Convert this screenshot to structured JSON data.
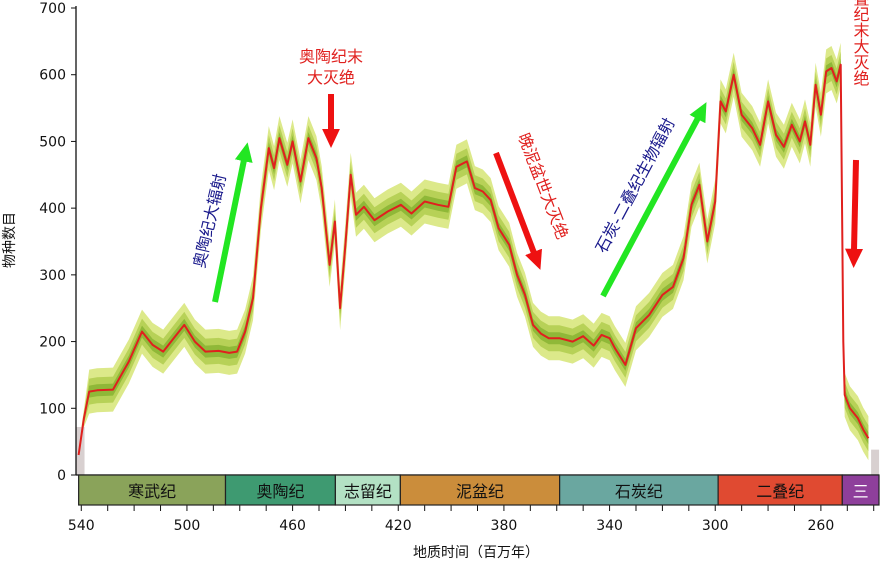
{
  "chart_data": {
    "type": "area",
    "xlabel": "地质时间（百万年）",
    "ylabel": "物种数目",
    "xlim": [
      542,
      238
    ],
    "ylim": [
      0,
      700
    ],
    "xticks": [
      540,
      500,
      460,
      420,
      380,
      340,
      300,
      260
    ],
    "yticks": [
      0,
      100,
      200,
      300,
      400,
      500,
      600,
      700
    ],
    "series": [
      {
        "x": [
          541,
          539,
          537,
          534,
          528,
          522,
          517,
          513,
          509,
          505,
          501,
          497,
          493,
          488,
          484,
          481,
          478,
          475,
          472,
          469,
          467,
          465,
          462,
          460,
          457,
          454,
          451,
          449,
          446,
          444,
          442,
          440,
          438,
          436,
          433,
          429,
          424,
          419,
          415,
          410,
          405,
          401,
          398,
          394,
          391,
          388,
          385,
          382,
          378,
          375,
          372,
          369,
          366,
          363,
          359,
          354,
          350,
          346,
          343,
          340,
          338,
          334,
          330,
          325,
          320,
          316,
          312,
          309,
          306,
          303,
          300,
          298,
          296,
          293,
          290,
          286,
          283,
          280,
          277,
          274,
          271,
          268,
          266,
          264,
          262,
          260,
          258,
          256,
          254,
          252.5,
          251.5,
          251,
          249,
          246,
          244,
          242
        ],
        "y": [
          30,
          85,
          125,
          127,
          128,
          170,
          215,
          195,
          185,
          205,
          225,
          200,
          185,
          186,
          183,
          185,
          215,
          265,
          400,
          490,
          460,
          505,
          465,
          500,
          440,
          505,
          475,
          430,
          315,
          380,
          250,
          345,
          450,
          390,
          402,
          382,
          395,
          405,
          392,
          410,
          405,
          402,
          462,
          470,
          430,
          425,
          412,
          370,
          345,
          300,
          270,
          225,
          212,
          205,
          205,
          200,
          208,
          194,
          210,
          205,
          190,
          165,
          220,
          240,
          270,
          282,
          325,
          405,
          435,
          350,
          410,
          560,
          545,
          600,
          540,
          520,
          495,
          560,
          510,
          492,
          525,
          500,
          530,
          495,
          585,
          540,
          605,
          610,
          590,
          615,
          200,
          120,
          100,
          85,
          68,
          55
        ]
      }
    ],
    "periods": [
      {
        "label": "寒武纪",
        "start": 541,
        "end": 485.4,
        "color": "#8aa35a"
      },
      {
        "label": "奥陶纪",
        "start": 485.4,
        "end": 443.8,
        "color": "#3e9a71"
      },
      {
        "label": "志留纪",
        "start": 443.8,
        "end": 419.2,
        "color": "#b3e1c4"
      },
      {
        "label": "泥盆纪",
        "start": 419.2,
        "end": 358.9,
        "color": "#cb8d3b"
      },
      {
        "label": "石炭纪",
        "start": 358.9,
        "end": 298.9,
        "color": "#6aa7a0"
      },
      {
        "label": "二叠纪",
        "start": 298.9,
        "end": 251.9,
        "color": "#e04a31"
      },
      {
        "label": "三",
        "start": 251.9,
        "end": 238,
        "color": "#8e3f9b"
      }
    ],
    "annotations": [
      {
        "text": "奥陶纪大辐射",
        "color": "#1a1a8c"
      },
      {
        "text": "奥陶纪末",
        "color": "#e0201e"
      },
      {
        "text": "大灭绝",
        "color": "#e0201e"
      },
      {
        "text": "晚泥盆世大灭绝",
        "color": "#e0201e"
      },
      {
        "text": "石炭-二叠纪生物辐射",
        "color": "#1a1a8c"
      },
      {
        "text": "二叠纪末大灭绝",
        "color": "#e0201e"
      }
    ],
    "colors": {
      "line": "#e0201e",
      "band_outer": "#dce98a",
      "band_mid": "#b7d157",
      "band_inner": "#8fb838",
      "arrow_green": "#22e622",
      "arrow_red": "#ee1111"
    }
  }
}
